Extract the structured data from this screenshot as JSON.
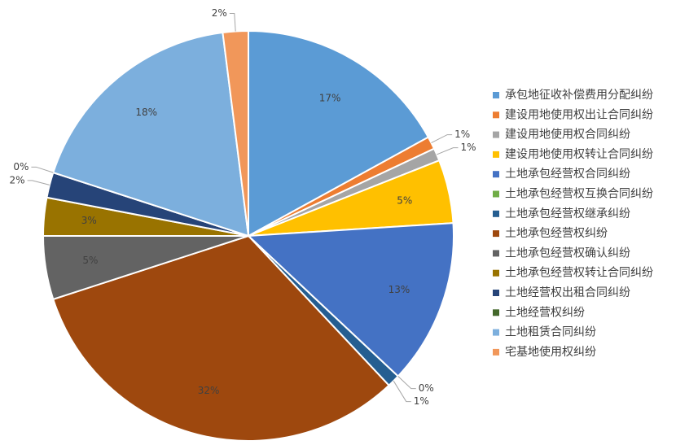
{
  "chart_data": {
    "type": "pie",
    "categories": [
      "承包地征收补偿费用分配纠纷",
      "建设用地使用权出让合同纠纷",
      "建设用地使用权合同纠纷",
      "建设用地使用权转让合同纠纷",
      "土地承包经营权合同纠纷",
      "土地承包经营权互换合同纠纷",
      "土地承包经营权继承纠纷",
      "土地承包经营权纠纷",
      "土地承包经营权确认纠纷",
      "土地承包经营权转让合同纠纷",
      "土地经营权出租合同纠纷",
      "土地经营权纠纷",
      "土地租赁合同纠纷",
      "宅基地使用权纠纷"
    ],
    "values": [
      17,
      1,
      1,
      5,
      13,
      0,
      1,
      32,
      5,
      3,
      2,
      0,
      18,
      2
    ],
    "value_labels": [
      "17%",
      "1%",
      "1%",
      "5%",
      "13%",
      "0%",
      "1%",
      "32%",
      "5%",
      "3%",
      "2%",
      "0%",
      "18%",
      "2%"
    ],
    "colors": [
      "#5b9bd5",
      "#ed7d31",
      "#a5a5a5",
      "#ffc000",
      "#4472c4",
      "#70ad47",
      "#255e91",
      "#9e480e",
      "#636363",
      "#997300",
      "#264478",
      "#43682b",
      "#7cafdd",
      "#f1975a"
    ],
    "legend": "right"
  }
}
